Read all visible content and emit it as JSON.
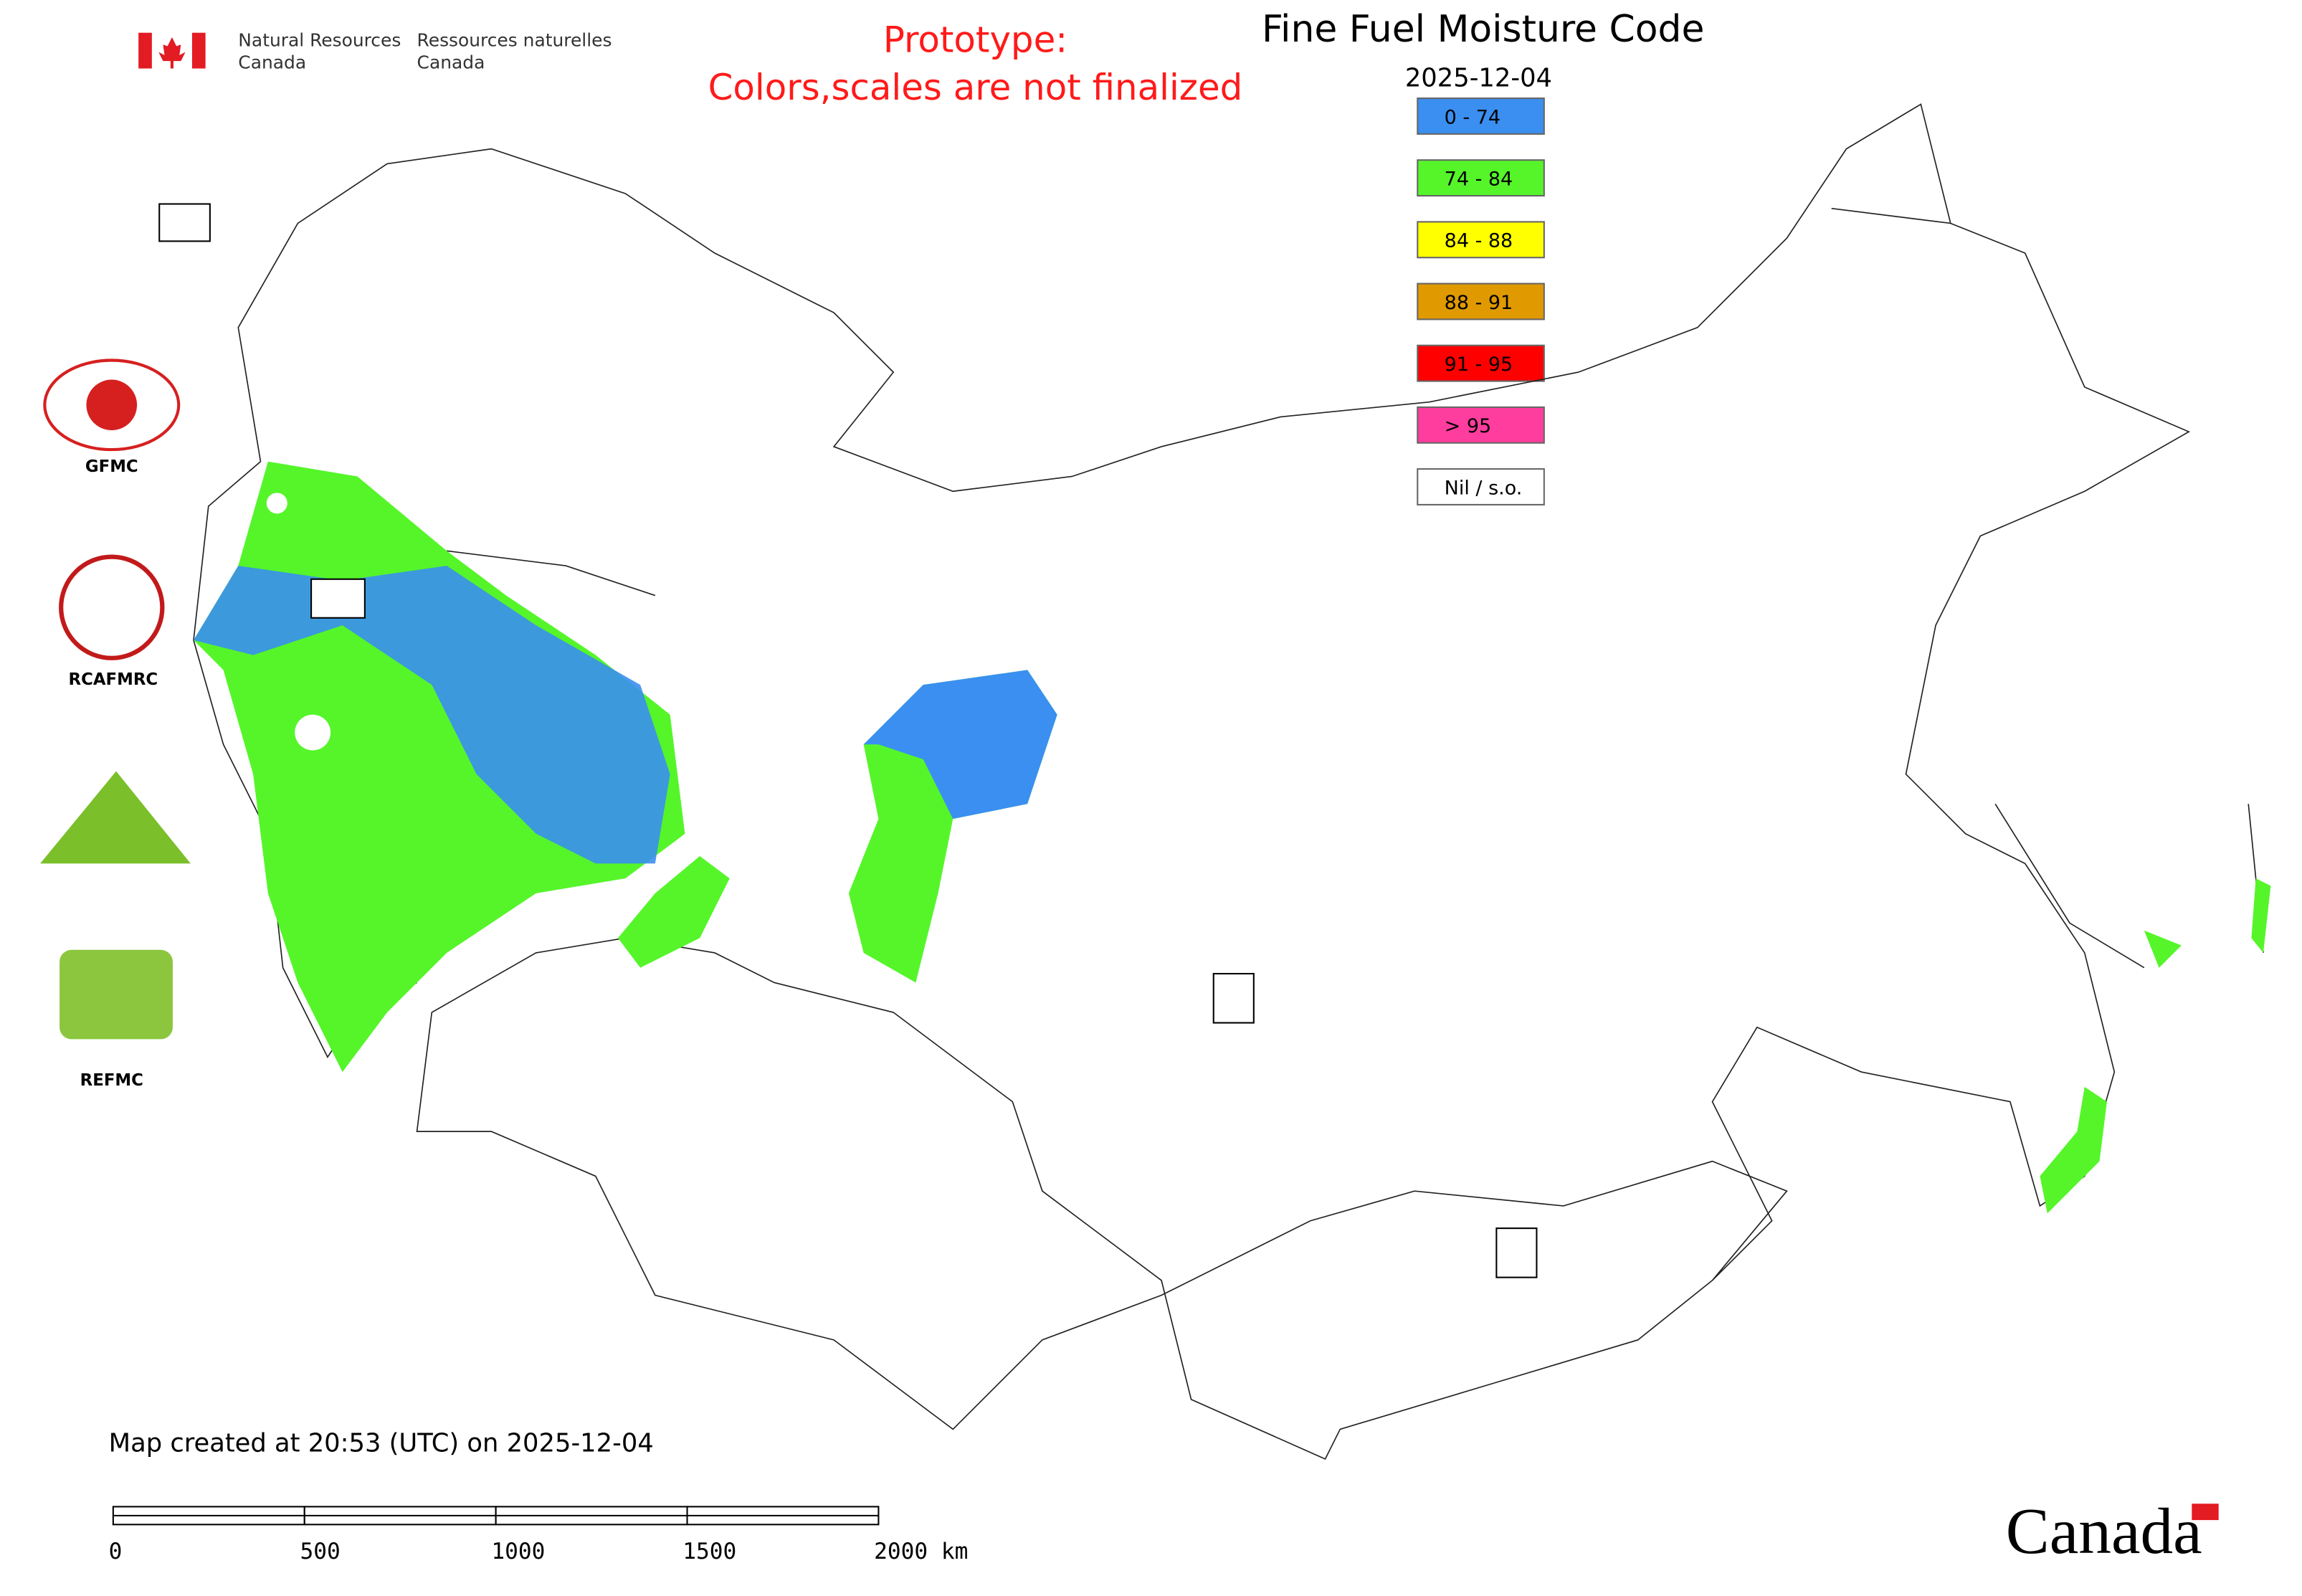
{
  "header": {
    "agency_en": [
      "Natural Resources",
      "Canada"
    ],
    "agency_fr": [
      "Ressources naturelles",
      "Canada"
    ],
    "notice": [
      "Prototype:",
      "Colors,scales are not finalized"
    ],
    "title": "Fine Fuel Moisture Code",
    "date": "2025-12-04"
  },
  "legend": {
    "items": [
      {
        "label": "0 - 74",
        "color": "#3a8ff0"
      },
      {
        "label": "74 - 84",
        "color": "#55f52a"
      },
      {
        "label": "84 - 88",
        "color": "#ffff00"
      },
      {
        "label": "88 - 91",
        "color": "#e09a00"
      },
      {
        "label": "91 - 95",
        "color": "#ff0000"
      },
      {
        "label": "> 95",
        "color": "#ff3d9e"
      },
      {
        "label": "Nil / s.o.",
        "color": "#ffffff"
      }
    ]
  },
  "logos": [
    "GFMC",
    "RCAFMRC",
    "REFMC"
  ],
  "footer": {
    "created": "Map created at 20:53 (UTC) on 2025-12-04",
    "wordmark": "Canada"
  },
  "scale_bar": {
    "labels": [
      "0",
      "500",
      "1000",
      "1500",
      "2000 km"
    ]
  }
}
